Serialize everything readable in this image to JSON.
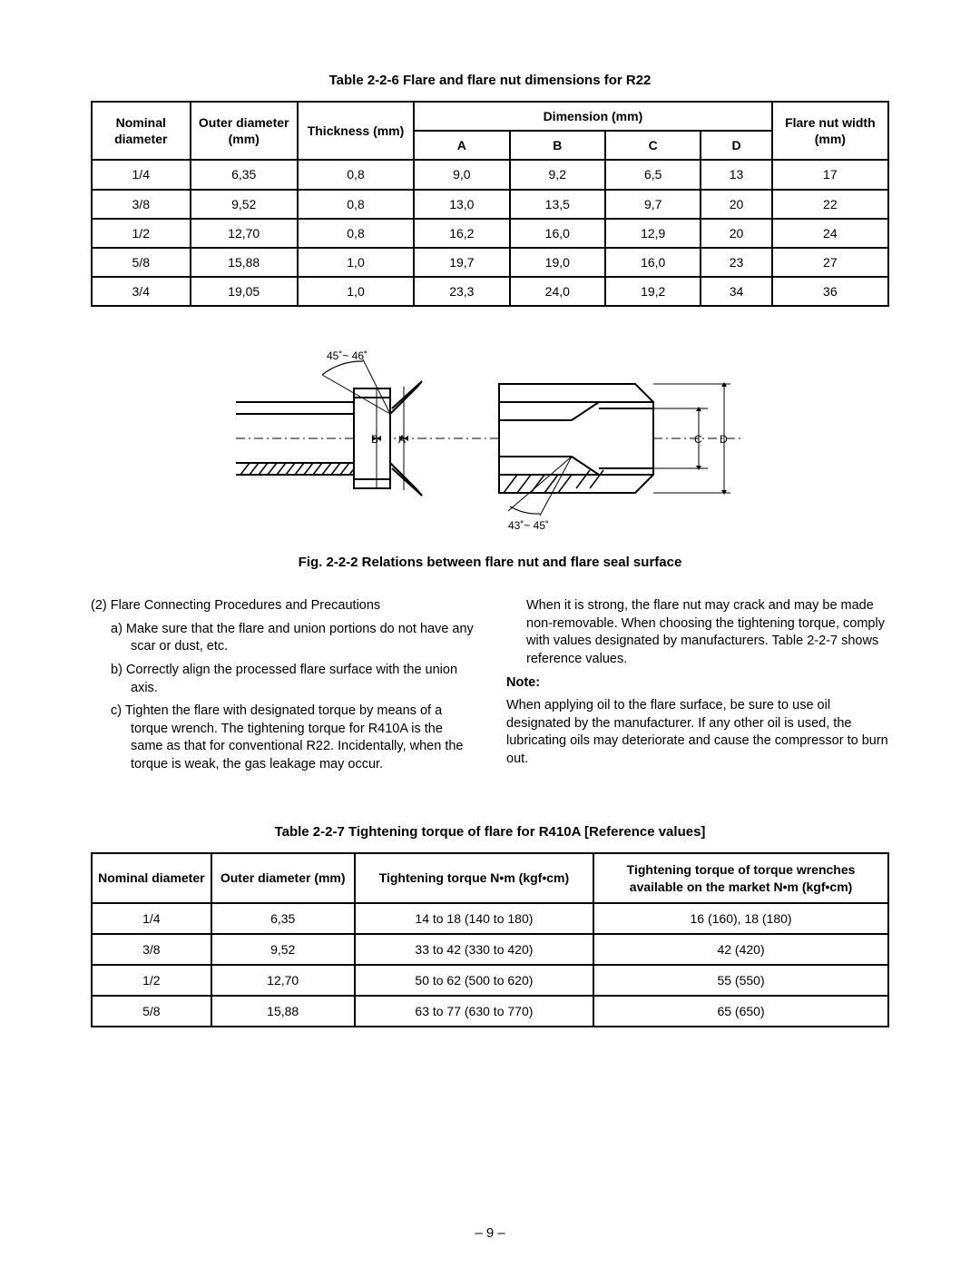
{
  "table1": {
    "title": "Table 2-2-6  Flare and flare nut dimensions for R22",
    "headers": {
      "nominal": "Nominal diameter",
      "outer": "Outer diameter (mm)",
      "thickness": "Thickness (mm)",
      "dimension": "Dimension (mm)",
      "A": "A",
      "B": "B",
      "C": "C",
      "D": "D",
      "flarenut": "Flare nut width (mm)"
    },
    "rows": [
      {
        "nom": "1/4",
        "od": "6,35",
        "th": "0,8",
        "a": "9,0",
        "b": "9,2",
        "c": "6,5",
        "d": "13",
        "fn": "17"
      },
      {
        "nom": "3/8",
        "od": "9,52",
        "th": "0,8",
        "a": "13,0",
        "b": "13,5",
        "c": "9,7",
        "d": "20",
        "fn": "22"
      },
      {
        "nom": "1/2",
        "od": "12,70",
        "th": "0,8",
        "a": "16,2",
        "b": "16,0",
        "c": "12,9",
        "d": "20",
        "fn": "24"
      },
      {
        "nom": "5/8",
        "od": "15,88",
        "th": "1,0",
        "a": "19,7",
        "b": "19,0",
        "c": "16,0",
        "d": "23",
        "fn": "27"
      },
      {
        "nom": "3/4",
        "od": "19,05",
        "th": "1,0",
        "a": "23,3",
        "b": "24,0",
        "c": "19,2",
        "d": "34",
        "fn": "36"
      }
    ]
  },
  "diagram": {
    "angle_top": "45˚~ 46˚",
    "angle_bottom": "43˚~ 45˚",
    "labels": {
      "A": "A",
      "B": "B",
      "C": "C",
      "D": "D"
    }
  },
  "fig_caption": "Fig. 2-2-2  Relations between flare nut and flare seal surface",
  "left_col": {
    "heading": "(2)  Flare Connecting Procedures and Precautions",
    "a": "a)  Make sure that the flare and union portions do not have any scar or dust, etc.",
    "b": "b)  Correctly align the processed flare surface with the union axis.",
    "c": "c)  Tighten the flare with designated torque by means of a torque wrench. The tightening torque for R410A is the same as that for conventional R22. Incidentally, when the torque is weak, the gas leakage may occur."
  },
  "right_col": {
    "cont": "When it is strong, the flare nut may crack and may be made non-removable. When choosing the tightening torque, comply with values designated by manufacturers. Table 2-2-7 shows reference values.",
    "note_label": "Note:",
    "note_body": "When applying oil to the flare surface, be sure to use oil designated by the manufacturer. If any other oil is used, the lubricating oils may deteriorate and cause the compressor to burn out."
  },
  "table2": {
    "title": "Table 2-2-7  Tightening torque of flare for R410A [Reference values]",
    "headers": {
      "nominal": "Nominal diameter",
      "outer": "Outer diameter (mm)",
      "tight": "Tightening torque N•m (kgf•cm)",
      "wrench": "Tightening torque of torque wrenches available on the market N•m (kgf•cm)"
    },
    "rows": [
      {
        "nom": "1/4",
        "od": "6,35",
        "t": "14 to 18 (140 to 180)",
        "w": "16 (160), 18 (180)"
      },
      {
        "nom": "3/8",
        "od": "9,52",
        "t": "33 to 42 (330 to 420)",
        "w": "42 (420)"
      },
      {
        "nom": "1/2",
        "od": "12,70",
        "t": "50 to 62 (500 to 620)",
        "w": "55 (550)"
      },
      {
        "nom": "5/8",
        "od": "15,88",
        "t": "63 to 77 (630 to 770)",
        "w": "65 (650)"
      }
    ]
  },
  "page_num": "– 9 –"
}
